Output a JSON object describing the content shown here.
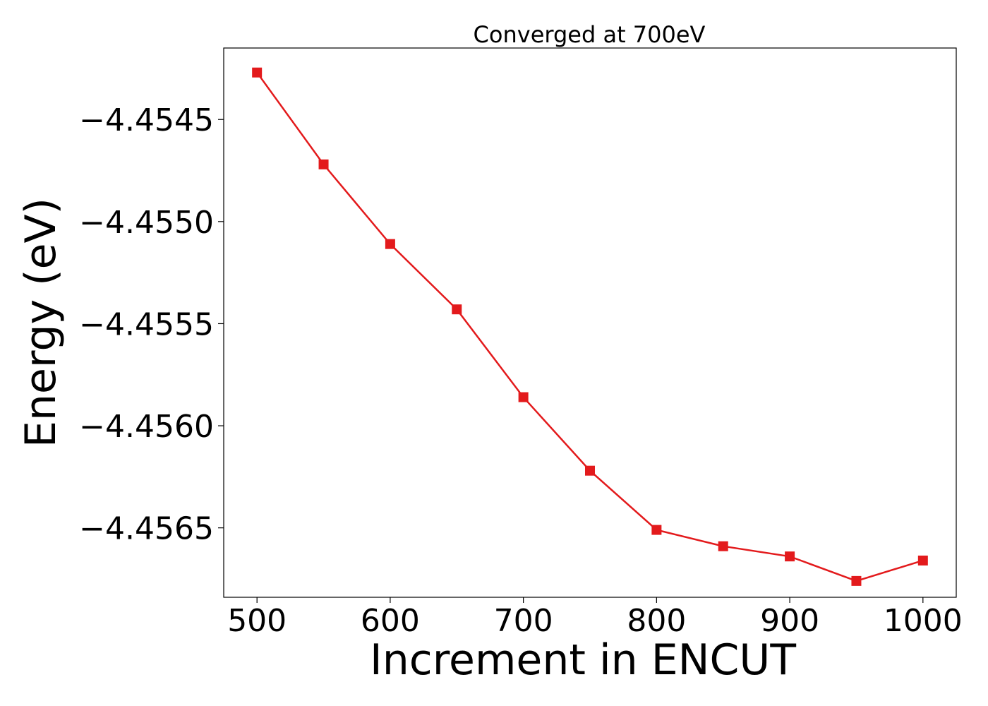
{
  "chart_data": {
    "type": "line",
    "title": "Converged at 700eV",
    "xlabel": "Increment in ENCUT",
    "ylabel": "Energy (eV)",
    "x": [
      500,
      550,
      600,
      650,
      700,
      750,
      800,
      850,
      900,
      950,
      1000
    ],
    "series": [
      {
        "values": [
          -4.45427,
          -4.45472,
          -4.45511,
          -4.45543,
          -4.45586,
          -4.45622,
          -4.45651,
          -4.45659,
          -4.45664,
          -4.45676,
          -4.45666
        ],
        "color": "#e31a1c",
        "marker": "square"
      }
    ],
    "xticks": [
      500,
      600,
      700,
      800,
      900,
      1000
    ],
    "xtick_labels": [
      "500",
      "600",
      "700",
      "800",
      "900",
      "1000"
    ],
    "yticks": [
      -4.4545,
      -4.455,
      -4.4555,
      -4.456,
      -4.4565
    ],
    "ytick_labels": [
      "−4.4545",
      "−4.4550",
      "−4.4555",
      "−4.4560",
      "−4.4565"
    ],
    "xlim": [
      475,
      1025
    ],
    "ylim": [
      -4.45684,
      -4.45415
    ],
    "grid": false,
    "legend": "none"
  }
}
